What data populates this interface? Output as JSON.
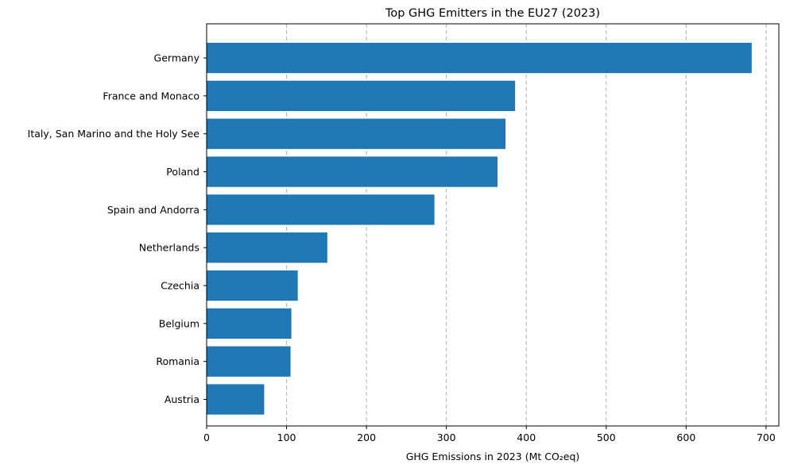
{
  "chart_data": {
    "type": "bar",
    "orientation": "horizontal",
    "title": "Top GHG Emitters in the EU27 (2023)",
    "xlabel": "GHG Emissions in 2023 (Mt CO₂eq)",
    "ylabel": "",
    "categories": [
      "Germany",
      "France and Monaco",
      "Italy, San Marino and the Holy See",
      "Poland",
      "Spain and Andorra",
      "Netherlands",
      "Czechia",
      "Belgium",
      "Romania",
      "Austria"
    ],
    "values": [
      682,
      386,
      374,
      364,
      285,
      151,
      114,
      106,
      105,
      72
    ],
    "xlim": [
      0,
      716
    ],
    "xticks": [
      0,
      100,
      200,
      300,
      400,
      500,
      600,
      700
    ],
    "grid": "x-axis dashed",
    "bar_color": "#1f77b4"
  }
}
